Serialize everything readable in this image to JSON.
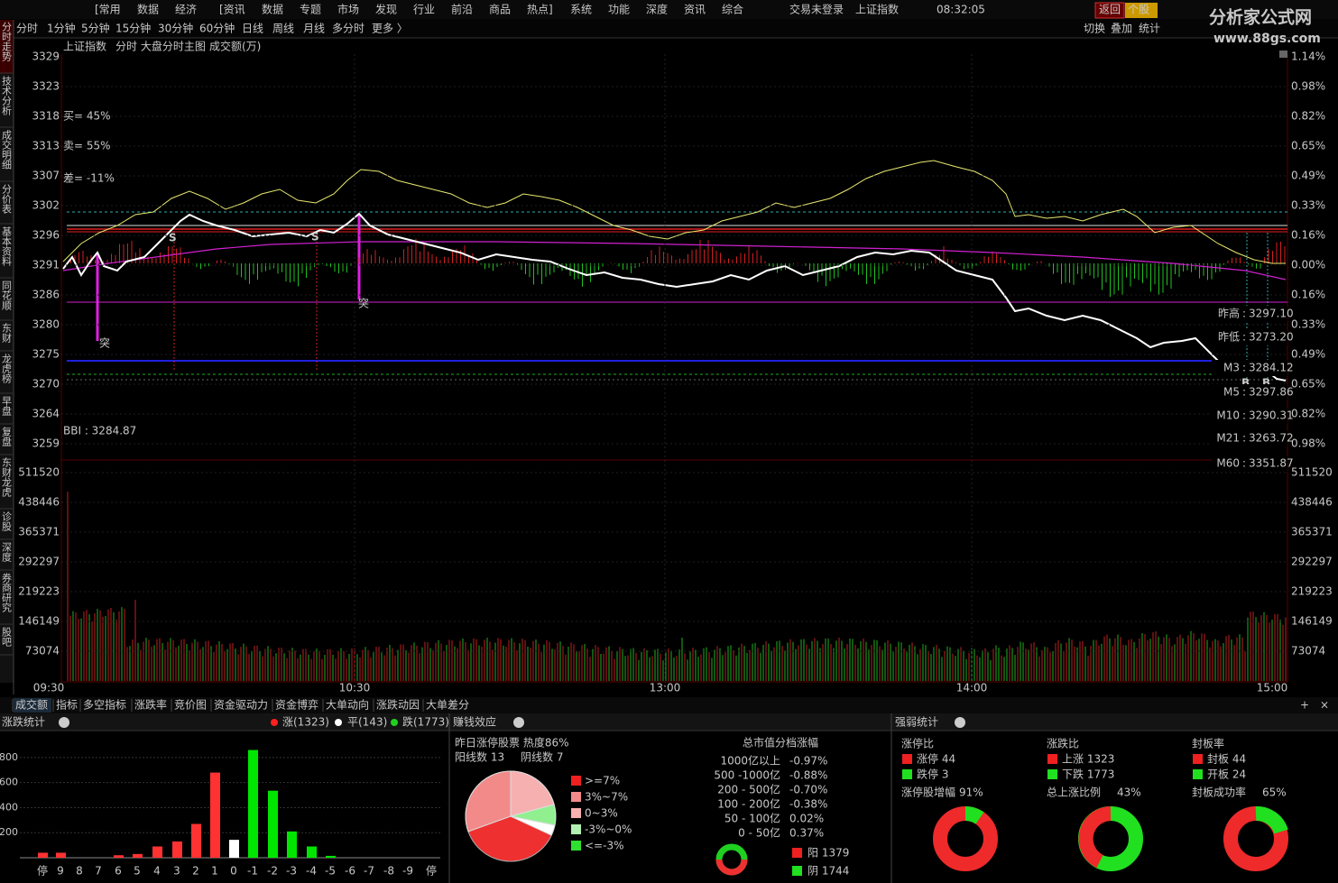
{
  "menu": [
    "[常用",
    "数据",
    "经济",
    "[资讯",
    "数据",
    "专题",
    "市场",
    "发现",
    "行业",
    "前沿",
    "商品",
    "热点]",
    "系统",
    "功能",
    "深度",
    "资讯",
    "综合"
  ],
  "status": {
    "login": "交易未登录",
    "index": "上证指数",
    "clock": "08:32:05"
  },
  "buttons": [
    "返回",
    "个股"
  ],
  "logo": {
    "name": "分析家公式网",
    "url": "www.88gs.com"
  },
  "periods": [
    "分时",
    "1分钟",
    "5分钟",
    "15分钟",
    "30分钟",
    "60分钟",
    "日线",
    "周线",
    "月线",
    "多分时",
    "更多 〉"
  ],
  "tools": [
    "切换",
    "叠加",
    "统计"
  ],
  "sidebar": [
    "分时走势",
    "技术分析",
    "成交明细",
    "分价表",
    "基本资料",
    "同花顺",
    "东财",
    "龙虎榜",
    "早盘",
    "复盘",
    "东财龙虎",
    "诊股",
    "深度",
    "券商研究",
    "股吧"
  ],
  "chart_header": {
    "name": "上证指数",
    "mode": "分时 大盘分时主图",
    "indicator": "成交额(万)"
  },
  "price_axis": [
    "3329",
    "3323",
    "3318",
    "3313",
    "3307",
    "3302",
    "3296",
    "3291",
    "3286",
    "3280",
    "3275",
    "3270",
    "3264",
    "3259"
  ],
  "pct_axis": [
    "1.14%",
    "0.98%",
    "0.82%",
    "0.65%",
    "0.49%",
    "0.33%",
    "0.16%",
    "0.00%",
    "0.16%",
    "0.33%",
    "0.49%",
    "0.65%",
    "0.82%",
    "0.98%"
  ],
  "volume_axis": [
    "511520",
    "438446",
    "365371",
    "292297",
    "219223",
    "146149",
    "73074"
  ],
  "time_axis": [
    "09:30",
    "10:30",
    "13:00",
    "14:00",
    "15:00"
  ],
  "legend": {
    "buy": "买= 45%",
    "sell": "卖= 55%",
    "diff": "差= -11%",
    "bbi": "BBI : 3284.87"
  },
  "markers": {
    "breakout": "突",
    "sell": "S",
    "buy": "B"
  },
  "stats": [
    {
      "label": "昨高",
      "value": "3297.10"
    },
    {
      "label": "昨低",
      "value": "3273.20"
    },
    {
      "label": "M3",
      "value": "3284.12"
    },
    {
      "label": "M5",
      "value": "3297.86"
    },
    {
      "label": "M10",
      "value": "3290.31"
    },
    {
      "label": "M21",
      "value": "3263.72"
    },
    {
      "label": "M60",
      "value": "3351.87"
    }
  ],
  "tabs": [
    "成交额",
    "指标",
    "多空指标",
    "涨跌率",
    "竞价图",
    "资金驱动力",
    "资金博弈",
    "大单动向",
    "涨跌动因",
    "大单差分"
  ],
  "rise_fall": {
    "title": "涨跌统计",
    "up": "涨(1323)",
    "flat": "平(143)",
    "down": "跌(1773)",
    "chart": {
      "type": "bar",
      "categories": [
        "停",
        "9",
        "8",
        "7",
        "6",
        "5",
        "4",
        "3",
        "2",
        "1",
        "0",
        "-1",
        "-2",
        "-3",
        "-4",
        "-5",
        "-6",
        "-7",
        "-8",
        "-9",
        "停"
      ],
      "values": [
        40,
        40,
        0,
        0,
        20,
        30,
        90,
        130,
        270,
        680,
        143,
        860,
        535,
        210,
        90,
        15,
        0,
        0,
        0,
        0,
        0
      ],
      "colors": [
        "#ff3232",
        "#ff3232",
        "#ff3232",
        "#ff3232",
        "#ff3232",
        "#ff3232",
        "#ff3232",
        "#ff3232",
        "#ff3232",
        "#ff3232",
        "#ffffff",
        "#00e600",
        "#00e600",
        "#00e600",
        "#00e600",
        "#00e600",
        "#00e600",
        "#00e600",
        "#00e600",
        "#00e600",
        "#00e600"
      ],
      "ylim": [
        0,
        900
      ],
      "yticks": [
        200,
        400,
        600,
        800
      ]
    }
  },
  "money_effect": {
    "title": "赚钱效应",
    "limit_up": "昨日涨停股票 热度86%",
    "yang": "阳线数  13",
    "yin": "阴线数  7",
    "pie_legend": [
      ">=7%",
      "3%~7%",
      "0~3%",
      "-3%~0%",
      "<=-3%"
    ],
    "cap_title": "总市值分档涨幅",
    "caps": [
      {
        "label": "1000亿以上",
        "value": "-0.97%"
      },
      {
        "label": "500 -1000亿",
        "value": "-0.88%"
      },
      {
        "label": "200 - 500亿",
        "value": "-0.70%"
      },
      {
        "label": "100 - 200亿",
        "value": "-0.38%"
      },
      {
        "label": "50 - 100亿",
        "value": "0.02%"
      },
      {
        "label": "0  -  50亿",
        "value": "0.37%"
      }
    ],
    "yang_count": "阳 1379",
    "yin_count": "阴 1744"
  },
  "strength": {
    "title": "强弱统计",
    "groups": [
      {
        "title": "涨停比",
        "items": [
          "涨停 44",
          "跌停 3"
        ],
        "rate_label": "涨停股增幅",
        "rate": "91%"
      },
      {
        "title": "涨跌比",
        "items": [
          "上涨 1323",
          "下跌 1773"
        ],
        "rate_label": "总上涨比例",
        "rate": "43%"
      },
      {
        "title": "封板率",
        "items": [
          "封板 44",
          "开板 24"
        ],
        "rate_label": "封板成功率",
        "rate": "65%"
      }
    ]
  }
}
